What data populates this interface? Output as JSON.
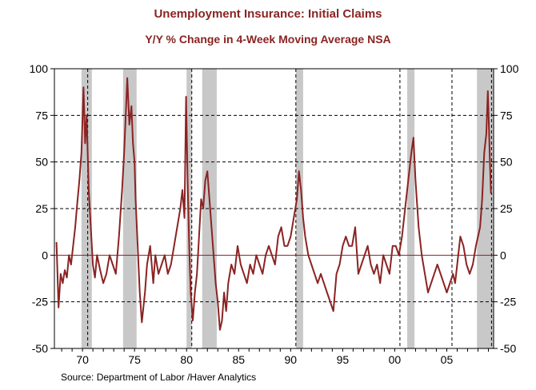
{
  "colors": {
    "title": "#8b2323",
    "line": "#8b2323",
    "recession": "#c8c8c8",
    "zero_line": "#8b2323"
  },
  "header": {
    "title": "Unemployment Insurance: Initial Claims",
    "subtitle": "Y/Y % Change in 4-Week Moving Average     NSA"
  },
  "source": "Source:  Department of Labor /Haver Analytics",
  "chart_data": {
    "type": "line",
    "title": "Unemployment Insurance: Initial Claims",
    "subtitle": "Y/Y % Change in 4-Week Moving Average NSA",
    "xlabel": "",
    "ylabel": "",
    "xlim": [
      1967.3,
      2009.5
    ],
    "ylim": [
      -50,
      100
    ],
    "y_ticks": [
      100,
      75,
      50,
      25,
      0,
      -25,
      -50
    ],
    "y_tick_labels": [
      "100",
      "75",
      "50",
      "25",
      "0",
      "-25",
      "-50"
    ],
    "x_ticks": [
      1970,
      1975,
      1980,
      1985,
      1990,
      1995,
      2000,
      2005
    ],
    "x_tick_labels": [
      "70",
      "75",
      "80",
      "85",
      "90",
      "95",
      "00",
      "05"
    ],
    "dashed_gridlines_y": [
      75,
      50,
      25,
      -25
    ],
    "dashed_gridlines_x": [
      1970.5,
      1980.5,
      1990.5,
      2000.5,
      2005.5,
      2009.3
    ],
    "recessions": [
      [
        1969.9,
        1970.9
      ],
      [
        1973.9,
        1975.2
      ],
      [
        1980.0,
        1980.5
      ],
      [
        1981.5,
        1982.9
      ],
      [
        1990.5,
        1991.2
      ],
      [
        2001.2,
        2001.9
      ],
      [
        2007.9,
        2009.5
      ]
    ],
    "series": [
      {
        "name": "Initial Claims Y/Y % Change (4-wk MA)",
        "x": [
          1967.5,
          1967.7,
          1967.9,
          1968.1,
          1968.3,
          1968.5,
          1968.7,
          1968.9,
          1969.1,
          1969.3,
          1969.5,
          1969.7,
          1969.9,
          1970.1,
          1970.25,
          1970.4,
          1970.6,
          1970.8,
          1971.0,
          1971.2,
          1971.4,
          1971.7,
          1972.0,
          1972.3,
          1972.6,
          1972.9,
          1973.2,
          1973.5,
          1973.8,
          1974.0,
          1974.3,
          1974.5,
          1974.7,
          1974.85,
          1975.0,
          1975.1,
          1975.3,
          1975.5,
          1975.7,
          1976.0,
          1976.2,
          1976.5,
          1976.8,
          1977.0,
          1977.3,
          1977.6,
          1977.9,
          1978.2,
          1978.5,
          1978.8,
          1979.1,
          1979.4,
          1979.6,
          1979.8,
          1979.95,
          1980.1,
          1980.25,
          1980.4,
          1980.6,
          1980.8,
          1981.0,
          1981.2,
          1981.4,
          1981.6,
          1981.8,
          1982.0,
          1982.2,
          1982.4,
          1982.6,
          1982.8,
          1983.0,
          1983.2,
          1983.4,
          1983.6,
          1983.8,
          1984.0,
          1984.3,
          1984.6,
          1984.9,
          1985.2,
          1985.5,
          1985.8,
          1986.1,
          1986.4,
          1986.7,
          1987.0,
          1987.3,
          1987.6,
          1987.9,
          1988.2,
          1988.5,
          1988.8,
          1989.1,
          1989.4,
          1989.7,
          1990.0,
          1990.3,
          1990.6,
          1990.8,
          1991.0,
          1991.2,
          1991.4,
          1991.7,
          1992.0,
          1992.3,
          1992.6,
          1992.9,
          1993.2,
          1993.5,
          1993.8,
          1994.1,
          1994.4,
          1994.7,
          1995.0,
          1995.3,
          1995.6,
          1995.9,
          1996.2,
          1996.5,
          1996.8,
          1997.1,
          1997.4,
          1997.7,
          1998.0,
          1998.3,
          1998.6,
          1998.9,
          1999.2,
          1999.5,
          1999.8,
          2000.1,
          2000.4,
          2000.7,
          2000.9,
          2001.0,
          2001.2,
          2001.4,
          2001.6,
          2001.8,
          2002.0,
          2002.3,
          2002.6,
          2002.9,
          2003.2,
          2003.5,
          2003.8,
          2004.1,
          2004.4,
          2004.7,
          2005.0,
          2005.3,
          2005.6,
          2005.8,
          2006.0,
          2006.3,
          2006.6,
          2006.9,
          2007.2,
          2007.5,
          2007.8,
          2008.0,
          2008.2,
          2008.4,
          2008.6,
          2008.8,
          2008.95,
          2009.05,
          2009.15,
          2009.25
        ],
        "values": [
          7,
          -28,
          -10,
          -15,
          -8,
          -12,
          0,
          -5,
          5,
          15,
          28,
          40,
          55,
          90,
          60,
          75,
          35,
          15,
          -5,
          -12,
          0,
          -8,
          -15,
          -10,
          0,
          -5,
          -10,
          10,
          35,
          55,
          95,
          70,
          80,
          60,
          50,
          30,
          5,
          -20,
          -36,
          -20,
          -5,
          5,
          -15,
          0,
          -10,
          -5,
          0,
          -10,
          -5,
          5,
          15,
          25,
          35,
          20,
          85,
          40,
          5,
          -20,
          -35,
          -20,
          -10,
          10,
          30,
          25,
          40,
          45,
          30,
          15,
          0,
          -15,
          -25,
          -40,
          -35,
          -20,
          -30,
          -15,
          -5,
          -10,
          5,
          -5,
          -10,
          -15,
          -5,
          -10,
          0,
          -5,
          -10,
          0,
          5,
          0,
          -5,
          10,
          15,
          5,
          5,
          10,
          20,
          30,
          45,
          35,
          20,
          10,
          0,
          -5,
          -10,
          -15,
          -10,
          -15,
          -20,
          -25,
          -30,
          -10,
          -5,
          5,
          10,
          5,
          5,
          15,
          -10,
          -5,
          0,
          5,
          -5,
          -10,
          -5,
          -15,
          0,
          -5,
          -10,
          5,
          5,
          0,
          10,
          20,
          25,
          35,
          45,
          55,
          63,
          40,
          15,
          0,
          -10,
          -20,
          -15,
          -10,
          -5,
          -10,
          -15,
          -20,
          -15,
          -10,
          -15,
          -5,
          10,
          5,
          -5,
          -10,
          -5,
          5,
          10,
          15,
          30,
          55,
          65,
          88,
          70,
          50,
          33
        ]
      }
    ]
  }
}
